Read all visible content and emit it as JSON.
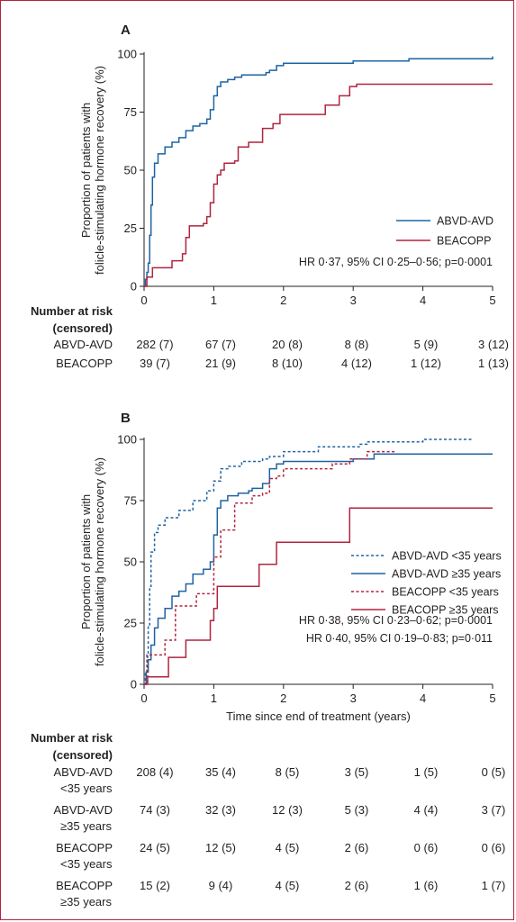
{
  "colors": {
    "abvd": "#1f63a3",
    "beacopp": "#b0243f",
    "axis": "#231f20"
  },
  "risk_header": [
    "Number at risk",
    "(censored)"
  ],
  "x_ticks": [
    "0",
    "1",
    "2",
    "3",
    "4",
    "5"
  ],
  "y_ticks": [
    "0",
    "25",
    "50",
    "75",
    "100"
  ],
  "chart_data": [
    {
      "panel": "A",
      "type": "line",
      "step": true,
      "ylabel": [
        "Proportion of patients with",
        "folicle-stimulating hormone recovery (%)"
      ],
      "xlabel": "",
      "xlim": [
        0,
        5
      ],
      "ylim": [
        0,
        100
      ],
      "legend_position": "right",
      "annotations": [
        "HR 0·37, 95% CI 0·25–0·56; p=0·0001"
      ],
      "series": [
        {
          "name": "ABVD-AVD",
          "color": "#1f63a3",
          "dash": "none",
          "points": [
            [
              0,
              0
            ],
            [
              0.02,
              3
            ],
            [
              0.04,
              6
            ],
            [
              0.06,
              10
            ],
            [
              0.08,
              22
            ],
            [
              0.1,
              35
            ],
            [
              0.12,
              47
            ],
            [
              0.15,
              53
            ],
            [
              0.2,
              57
            ],
            [
              0.3,
              60
            ],
            [
              0.4,
              62
            ],
            [
              0.5,
              64
            ],
            [
              0.6,
              67
            ],
            [
              0.7,
              69
            ],
            [
              0.8,
              70
            ],
            [
              0.9,
              72
            ],
            [
              0.95,
              76
            ],
            [
              1.0,
              82
            ],
            [
              1.05,
              86
            ],
            [
              1.1,
              88
            ],
            [
              1.2,
              89
            ],
            [
              1.3,
              90
            ],
            [
              1.4,
              91
            ],
            [
              1.6,
              91
            ],
            [
              1.75,
              92
            ],
            [
              1.8,
              93
            ],
            [
              1.9,
              95
            ],
            [
              2.0,
              96
            ],
            [
              2.2,
              96
            ],
            [
              3.0,
              97
            ],
            [
              3.8,
              98
            ],
            [
              5.0,
              99
            ]
          ]
        },
        {
          "name": "BEACOPP",
          "color": "#b0243f",
          "dash": "none",
          "points": [
            [
              0,
              0
            ],
            [
              0.04,
              4
            ],
            [
              0.12,
              8
            ],
            [
              0.35,
              8
            ],
            [
              0.4,
              11
            ],
            [
              0.55,
              14
            ],
            [
              0.6,
              21
            ],
            [
              0.65,
              26
            ],
            [
              0.85,
              27
            ],
            [
              0.9,
              30
            ],
            [
              0.95,
              36
            ],
            [
              1.0,
              44
            ],
            [
              1.05,
              48
            ],
            [
              1.1,
              50
            ],
            [
              1.15,
              53
            ],
            [
              1.3,
              54
            ],
            [
              1.35,
              60
            ],
            [
              1.45,
              60
            ],
            [
              1.5,
              62
            ],
            [
              1.65,
              62
            ],
            [
              1.7,
              68
            ],
            [
              1.85,
              70
            ],
            [
              1.95,
              74
            ],
            [
              2.5,
              74
            ],
            [
              2.6,
              78
            ],
            [
              2.8,
              82
            ],
            [
              2.95,
              86
            ],
            [
              3.05,
              87
            ],
            [
              5.0,
              87
            ]
          ]
        }
      ],
      "risk_rows": [
        {
          "label": [
            "ABVD-AVD"
          ],
          "values": [
            "282 (7)",
            "67 (7)",
            "20 (8)",
            "8 (8)",
            "5 (9)",
            "3 (12)"
          ]
        },
        {
          "label": [
            "BEACOPP"
          ],
          "values": [
            "39 (7)",
            "21 (9)",
            "8 (10)",
            "4 (12)",
            "1 (12)",
            "1 (13)"
          ]
        }
      ]
    },
    {
      "panel": "B",
      "type": "line",
      "step": true,
      "ylabel": [
        "Proportion of patients with",
        "folicle-stimulating hormone recovery (%)"
      ],
      "xlabel": "Time since end of treatment (years)",
      "xlim": [
        0,
        5
      ],
      "ylim": [
        0,
        100
      ],
      "legend_position": "right",
      "annotations": [
        "HR 0·38, 95% CI 0·23–0·62; p=0·0001",
        "HR 0·40, 95% CI 0·19–0·83; p=0·011"
      ],
      "series": [
        {
          "name": "ABVD-AVD <35 years",
          "color": "#1f63a3",
          "dash": "dashed",
          "points": [
            [
              0,
              0
            ],
            [
              0.02,
              5
            ],
            [
              0.04,
              12
            ],
            [
              0.06,
              24
            ],
            [
              0.08,
              40
            ],
            [
              0.1,
              54
            ],
            [
              0.15,
              62
            ],
            [
              0.2,
              65
            ],
            [
              0.3,
              68
            ],
            [
              0.5,
              71
            ],
            [
              0.7,
              75
            ],
            [
              0.9,
              79
            ],
            [
              1.0,
              83
            ],
            [
              1.1,
              88
            ],
            [
              1.2,
              89
            ],
            [
              1.4,
              91
            ],
            [
              1.7,
              92
            ],
            [
              1.8,
              93
            ],
            [
              2.0,
              95
            ],
            [
              2.5,
              97
            ],
            [
              3.1,
              98
            ],
            [
              3.2,
              99
            ],
            [
              4.0,
              100
            ],
            [
              4.7,
              100
            ]
          ]
        },
        {
          "name": "ABVD-AVD ≥35 years",
          "color": "#1f63a3",
          "dash": "none",
          "points": [
            [
              0,
              0
            ],
            [
              0.03,
              5
            ],
            [
              0.06,
              10
            ],
            [
              0.1,
              16
            ],
            [
              0.15,
              23
            ],
            [
              0.2,
              27
            ],
            [
              0.3,
              31
            ],
            [
              0.4,
              36
            ],
            [
              0.5,
              38
            ],
            [
              0.6,
              41
            ],
            [
              0.7,
              45
            ],
            [
              0.85,
              47
            ],
            [
              0.95,
              50
            ],
            [
              1.0,
              61
            ],
            [
              1.05,
              72
            ],
            [
              1.1,
              75
            ],
            [
              1.2,
              77
            ],
            [
              1.35,
              78
            ],
            [
              1.5,
              79
            ],
            [
              1.55,
              80
            ],
            [
              1.7,
              82
            ],
            [
              1.8,
              88
            ],
            [
              1.9,
              90
            ],
            [
              2.0,
              91
            ],
            [
              3.0,
              92
            ],
            [
              3.3,
              94
            ],
            [
              5.0,
              94
            ]
          ]
        },
        {
          "name": "BEACOPP <35 years",
          "color": "#b0243f",
          "dash": "dashed",
          "points": [
            [
              0,
              0
            ],
            [
              0.05,
              12
            ],
            [
              0.25,
              12
            ],
            [
              0.3,
              18
            ],
            [
              0.45,
              32
            ],
            [
              0.55,
              32
            ],
            [
              0.75,
              37
            ],
            [
              0.85,
              37
            ],
            [
              1.0,
              52
            ],
            [
              1.1,
              63
            ],
            [
              1.3,
              74
            ],
            [
              1.4,
              74
            ],
            [
              1.55,
              77
            ],
            [
              1.7,
              78
            ],
            [
              1.8,
              84
            ],
            [
              1.9,
              85
            ],
            [
              2.0,
              88
            ],
            [
              2.7,
              90
            ],
            [
              2.95,
              92
            ],
            [
              3.2,
              95
            ],
            [
              3.6,
              95
            ]
          ]
        },
        {
          "name": "BEACOPP ≥35 years",
          "color": "#b0243f",
          "dash": "none",
          "points": [
            [
              0,
              0
            ],
            [
              0.05,
              3
            ],
            [
              0.3,
              3
            ],
            [
              0.35,
              11
            ],
            [
              0.55,
              11
            ],
            [
              0.6,
              18
            ],
            [
              0.9,
              18
            ],
            [
              0.95,
              26
            ],
            [
              1.0,
              31
            ],
            [
              1.05,
              40
            ],
            [
              1.6,
              40
            ],
            [
              1.65,
              49
            ],
            [
              1.85,
              49
            ],
            [
              1.9,
              58
            ],
            [
              2.9,
              58
            ],
            [
              2.95,
              72
            ],
            [
              5.0,
              72
            ]
          ]
        }
      ],
      "risk_rows": [
        {
          "label": [
            "ABVD-AVD",
            "<35 years"
          ],
          "values": [
            "208 (4)",
            "35 (4)",
            "8 (5)",
            "3 (5)",
            "1 (5)",
            "0 (5)"
          ]
        },
        {
          "label": [
            "ABVD-AVD",
            "≥35 years"
          ],
          "values": [
            "74 (3)",
            "32 (3)",
            "12 (3)",
            "5 (3)",
            "4 (4)",
            "3 (7)"
          ]
        },
        {
          "label": [
            "BEACOPP",
            "<35 years"
          ],
          "values": [
            "24 (5)",
            "12 (5)",
            "4 (5)",
            "2 (6)",
            "0 (6)",
            "0 (6)"
          ]
        },
        {
          "label": [
            "BEACOPP",
            "≥35 years"
          ],
          "values": [
            "15 (2)",
            "9 (4)",
            "4 (5)",
            "2 (6)",
            "1 (6)",
            "1 (7)"
          ]
        }
      ]
    }
  ]
}
